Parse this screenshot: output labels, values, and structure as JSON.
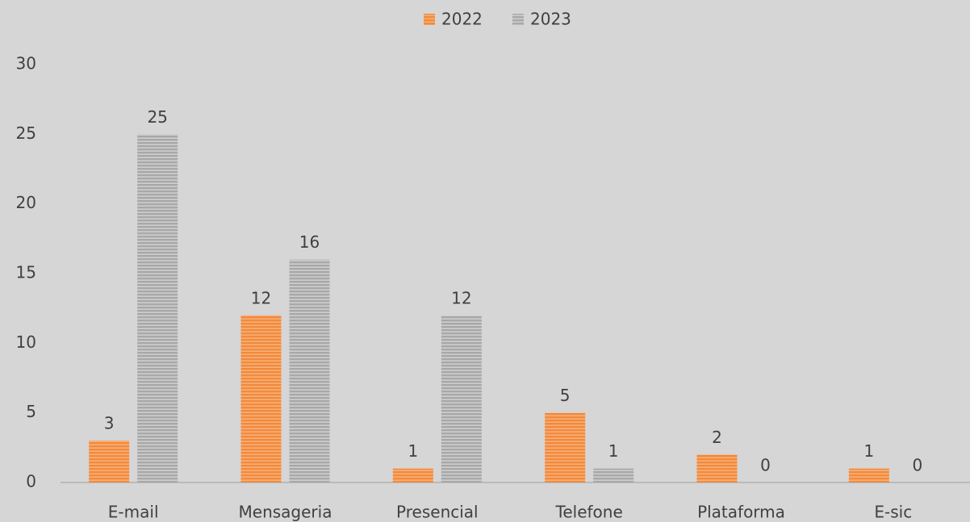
{
  "chart_data": {
    "type": "bar",
    "categories": [
      "E-mail",
      "Mensageria",
      "Presencial",
      "Telefone",
      "Plataforma",
      "E-sic"
    ],
    "series": [
      {
        "name": "2022",
        "color": "#f28a3c",
        "values": [
          3,
          12,
          1,
          5,
          2,
          1
        ]
      },
      {
        "name": "2023",
        "color": "#a8a8a8",
        "values": [
          25,
          16,
          12,
          1,
          0,
          0
        ]
      }
    ],
    "ylim": [
      0,
      30
    ],
    "yticks": [
      0,
      5,
      10,
      15,
      20,
      25,
      30
    ],
    "grid": false,
    "legend": "top"
  }
}
